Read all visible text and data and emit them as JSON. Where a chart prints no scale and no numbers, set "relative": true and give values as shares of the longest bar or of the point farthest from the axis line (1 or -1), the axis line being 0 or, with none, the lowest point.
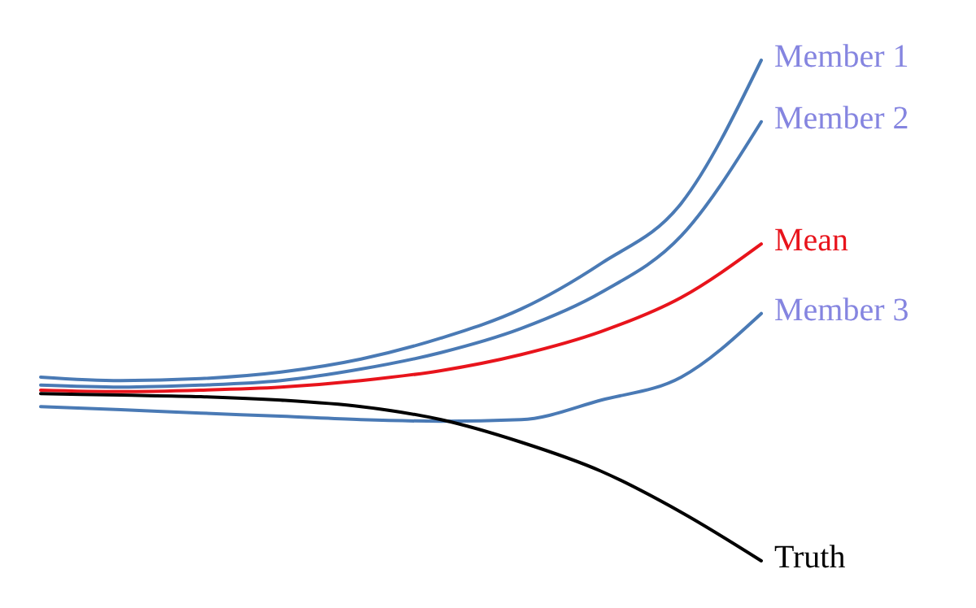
{
  "chart_data": {
    "type": "line",
    "relative": true,
    "categories": [
      null,
      null,
      null,
      null,
      null,
      null,
      null,
      null,
      null,
      null
    ],
    "line_style": "solid",
    "marker": "none",
    "series": [
      {
        "name": "Member 1",
        "color": "#4a7ab5",
        "values": [
          0.367,
          0.36,
          0.364,
          0.377,
          0.403,
          0.445,
          0.503,
          0.594,
          0.714,
          1
        ]
      },
      {
        "name": "Member 2",
        "color": "#4a7ab5",
        "values": [
          0.351,
          0.347,
          0.351,
          0.36,
          0.383,
          0.416,
          0.464,
          0.536,
          0.649,
          0.877
        ]
      },
      {
        "name": "Mean",
        "color": "#e8141c",
        "values": [
          0.341,
          0.338,
          0.341,
          0.347,
          0.36,
          0.38,
          0.412,
          0.458,
          0.526,
          0.633
        ]
      },
      {
        "name": "Member 3",
        "color": "#4a7ab5",
        "values": [
          0.308,
          0.302,
          0.295,
          0.289,
          0.282,
          0.279,
          0.282,
          0.321,
          0.367,
          0.494
        ]
      },
      {
        "name": "Truth",
        "color": "#000000",
        "values": [
          0.334,
          0.331,
          0.328,
          0.321,
          0.308,
          0.282,
          0.237,
          0.179,
          0.097,
          0
        ]
      }
    ]
  }
}
